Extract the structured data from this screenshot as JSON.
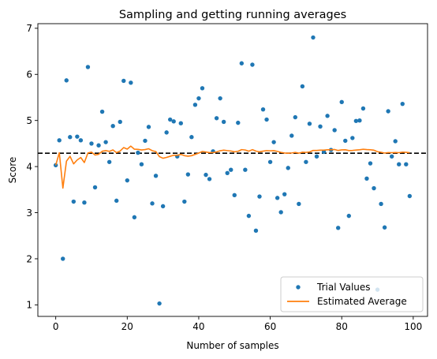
{
  "chart_data": {
    "type": "scatter",
    "title": "Sampling and getting running averages",
    "xlabel": "Number of samples",
    "ylabel": "Score",
    "xlim": [
      -5,
      104
    ],
    "ylim": [
      0.75,
      7.1
    ],
    "xticks": [
      0,
      20,
      40,
      60,
      80,
      100
    ],
    "yticks": [
      1,
      2,
      3,
      4,
      5,
      6,
      7
    ],
    "grid": false,
    "legend_position": "lower-right",
    "reference_line": {
      "y": 4.29,
      "style": "dashed",
      "color": "#000000"
    },
    "series": [
      {
        "name": "Trial Values",
        "kind": "scatter",
        "color": "#1f77b4",
        "x": [
          0,
          1,
          2,
          3,
          4,
          5,
          6,
          7,
          8,
          9,
          10,
          11,
          12,
          13,
          14,
          15,
          16,
          17,
          18,
          19,
          20,
          21,
          22,
          23,
          24,
          25,
          26,
          27,
          28,
          29,
          30,
          31,
          32,
          33,
          34,
          35,
          36,
          37,
          38,
          39,
          40,
          41,
          42,
          43,
          44,
          45,
          46,
          47,
          48,
          49,
          50,
          51,
          52,
          53,
          54,
          55,
          56,
          57,
          58,
          59,
          60,
          61,
          62,
          63,
          64,
          65,
          66,
          67,
          68,
          69,
          70,
          71,
          72,
          73,
          74,
          75,
          76,
          77,
          78,
          79,
          80,
          81,
          82,
          83,
          84,
          85,
          86,
          87,
          88,
          89,
          90,
          91,
          92,
          93,
          94,
          95,
          96,
          97,
          98,
          99
        ],
        "y": [
          4.03,
          4.57,
          2.0,
          5.87,
          4.64,
          3.24,
          4.65,
          4.57,
          3.22,
          6.16,
          4.5,
          3.55,
          4.46,
          5.19,
          4.53,
          4.1,
          4.88,
          3.26,
          4.97,
          5.86,
          3.7,
          5.82,
          2.9,
          4.3,
          4.05,
          4.56,
          4.86,
          3.2,
          3.8,
          1.03,
          3.14,
          4.74,
          5.02,
          4.98,
          4.22,
          4.94,
          3.24,
          3.83,
          4.64,
          5.34,
          5.48,
          5.7,
          3.82,
          3.73,
          4.33,
          5.05,
          5.48,
          4.97,
          3.86,
          3.93,
          3.38,
          4.95,
          6.24,
          3.93,
          2.93,
          6.21,
          2.61,
          3.35,
          5.24,
          5.02,
          4.1,
          4.53,
          3.32,
          3.01,
          3.4,
          3.97,
          4.67,
          5.07,
          3.19,
          5.74,
          4.1,
          4.93,
          6.8,
          4.22,
          4.87,
          4.32,
          5.1,
          4.36,
          4.79,
          2.67,
          5.4,
          4.56,
          2.93,
          4.62,
          4.99,
          5.0,
          5.26,
          3.74,
          4.07,
          3.53,
          1.33,
          3.19,
          2.68,
          5.2,
          4.22,
          4.55,
          4.05,
          5.36,
          4.05,
          3.36
        ]
      },
      {
        "name": "Estimated Average",
        "kind": "line",
        "color": "#ff7f0e"
      }
    ]
  }
}
